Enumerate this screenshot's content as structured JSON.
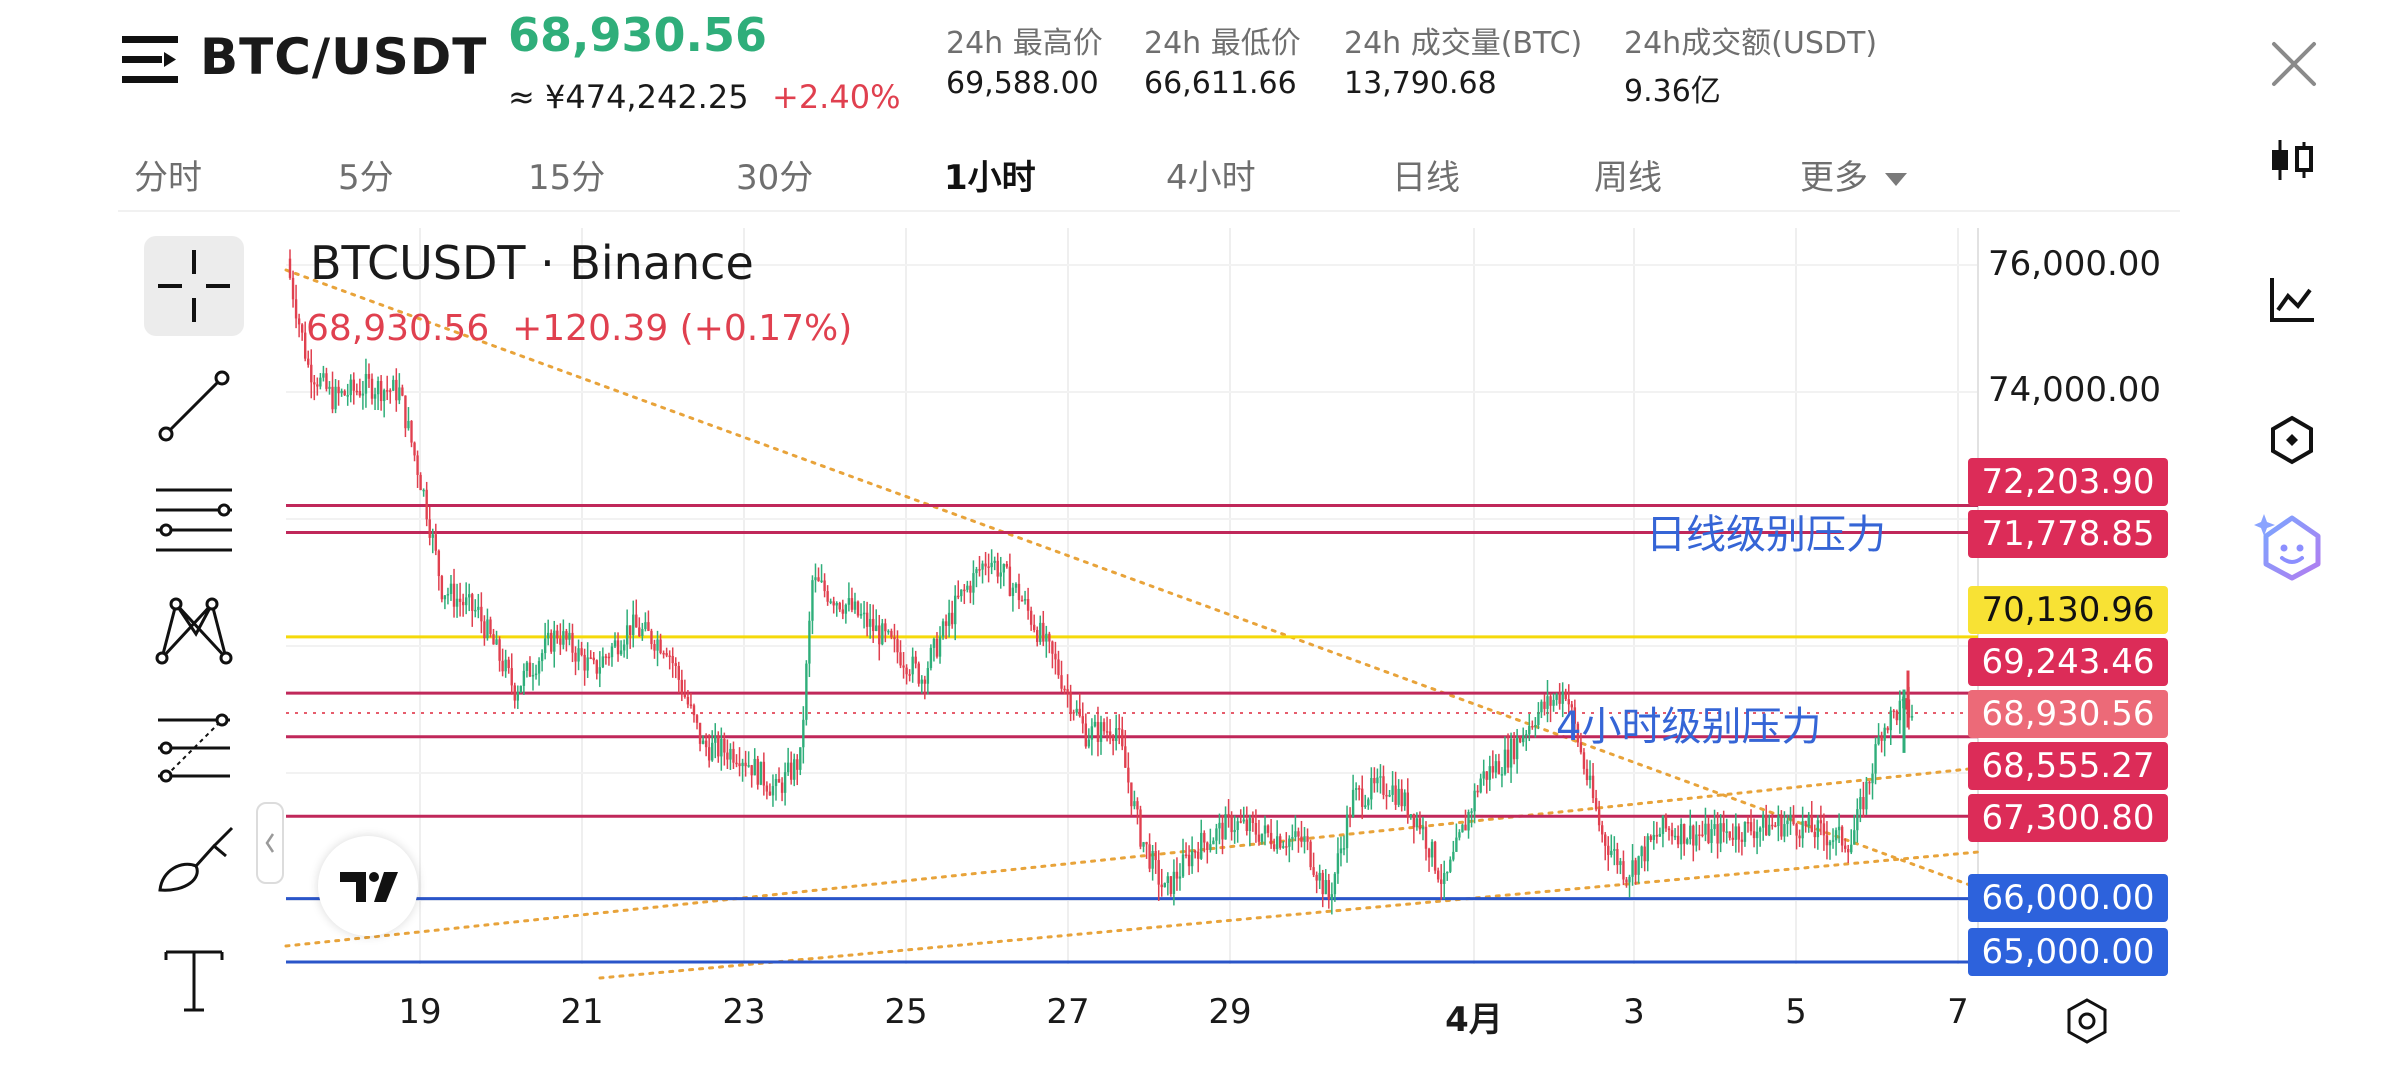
{
  "header": {
    "symbol": "BTC/USDT",
    "last_price": "68,930.56",
    "cny_price": "≈ ¥474,242.25",
    "change_pct": "+2.40%",
    "stats": [
      {
        "label": "24h 最高价",
        "value": "69,588.00"
      },
      {
        "label": "24h 最低价",
        "value": "66,611.66"
      },
      {
        "label": "24h 成交量(BTC)",
        "value": "13,790.68"
      },
      {
        "label": "24h成交额(USDT)",
        "value": "9.36亿"
      }
    ]
  },
  "tabs": [
    {
      "label": "分时",
      "active": false
    },
    {
      "label": "5分",
      "active": false
    },
    {
      "label": "15分",
      "active": false
    },
    {
      "label": "30分",
      "active": false
    },
    {
      "label": "1小时",
      "active": true
    },
    {
      "label": "4小时",
      "active": false
    },
    {
      "label": "日线",
      "active": false
    },
    {
      "label": "周线",
      "active": false
    },
    {
      "label": "更多",
      "active": false
    }
  ],
  "chart": {
    "title": "BTCUSDT · Binance",
    "subtitle": "68,930.56  +120.39 (+0.17%)",
    "annotations": [
      "日线级别压力",
      "4小时级别压力"
    ],
    "tradingview_logo": "TV"
  },
  "right_sidebar": [
    "candlestick-icon",
    "indicator-chart-icon",
    "settings-hexagon-icon",
    "ai-assistant-icon"
  ],
  "toolbar": [
    "crosshair-icon",
    "trendline-icon",
    "parallel-lines-icon",
    "pattern-icon",
    "fib-icon",
    "brush-icon",
    "text-icon"
  ],
  "colors": {
    "up": "#2fae7a",
    "down": "#e0404f",
    "resistance_line": "#c0285a",
    "support_line": "#2a55c9",
    "yellow_line": "#f5d90a",
    "trend_dotted": "#e8a33a"
  },
  "chart_data": {
    "type": "candlestick",
    "title": "BTCUSDT · Binance",
    "interval": "1小时",
    "y_axis_labels": [
      "76,000.00",
      "74,000.00"
    ],
    "ylim": [
      64800,
      76300
    ],
    "x_tick_labels": [
      "19",
      "21",
      "23",
      "25",
      "27",
      "29",
      "4月",
      "3",
      "5",
      "7"
    ],
    "last_price": 68930.56,
    "horizontal_lines": [
      {
        "value": 72203.9,
        "label": "72,203.90",
        "color": "#c0285a"
      },
      {
        "value": 71778.85,
        "label": "71,778.85",
        "color": "#c0285a"
      },
      {
        "value": 70130.96,
        "label": "70,130.96",
        "color": "#f5d90a"
      },
      {
        "value": 69243.46,
        "label": "69,243.46",
        "color": "#c0285a"
      },
      {
        "value": 68930.56,
        "label": "68,930.56",
        "color": "#e65c6c",
        "style": "dotted"
      },
      {
        "value": 68555.27,
        "label": "68,555.27",
        "color": "#c0285a"
      },
      {
        "value": 67300.8,
        "label": "67,300.80",
        "color": "#c0285a"
      },
      {
        "value": 66000.0,
        "label": "66,000.00",
        "color": "#2a55c9"
      },
      {
        "value": 65000.0,
        "label": "65,000.00",
        "color": "#2a55c9"
      }
    ],
    "close_path": [
      [
        0,
        75800
      ],
      [
        6,
        74400
      ],
      [
        14,
        73900
      ],
      [
        26,
        74100
      ],
      [
        36,
        74000
      ],
      [
        44,
        72400
      ],
      [
        50,
        70900
      ],
      [
        62,
        70500
      ],
      [
        74,
        69300
      ],
      [
        88,
        70200
      ],
      [
        100,
        69600
      ],
      [
        112,
        70300
      ],
      [
        124,
        70000
      ],
      [
        136,
        68400
      ],
      [
        148,
        68300
      ],
      [
        160,
        67700
      ],
      [
        168,
        68200
      ],
      [
        172,
        71000
      ],
      [
        184,
        70600
      ],
      [
        196,
        70100
      ],
      [
        208,
        69500
      ],
      [
        220,
        70700
      ],
      [
        230,
        71400
      ],
      [
        240,
        70800
      ],
      [
        252,
        69700
      ],
      [
        262,
        68600
      ],
      [
        272,
        68700
      ],
      [
        280,
        67000
      ],
      [
        288,
        66100
      ],
      [
        298,
        66800
      ],
      [
        310,
        67200
      ],
      [
        322,
        67000
      ],
      [
        334,
        66900
      ],
      [
        342,
        66000
      ],
      [
        350,
        67600
      ],
      [
        362,
        67800
      ],
      [
        372,
        67200
      ],
      [
        380,
        66200
      ],
      [
        392,
        67900
      ],
      [
        400,
        68200
      ],
      [
        410,
        68900
      ],
      [
        420,
        69300
      ],
      [
        426,
        68100
      ],
      [
        432,
        67000
      ],
      [
        440,
        66400
      ],
      [
        452,
        67100
      ],
      [
        466,
        67000
      ],
      [
        480,
        67100
      ],
      [
        494,
        67200
      ],
      [
        506,
        67000
      ],
      [
        514,
        66900
      ],
      [
        520,
        67900
      ],
      [
        524,
        68700
      ],
      [
        530,
        69000
      ],
      [
        534,
        68930
      ]
    ]
  }
}
